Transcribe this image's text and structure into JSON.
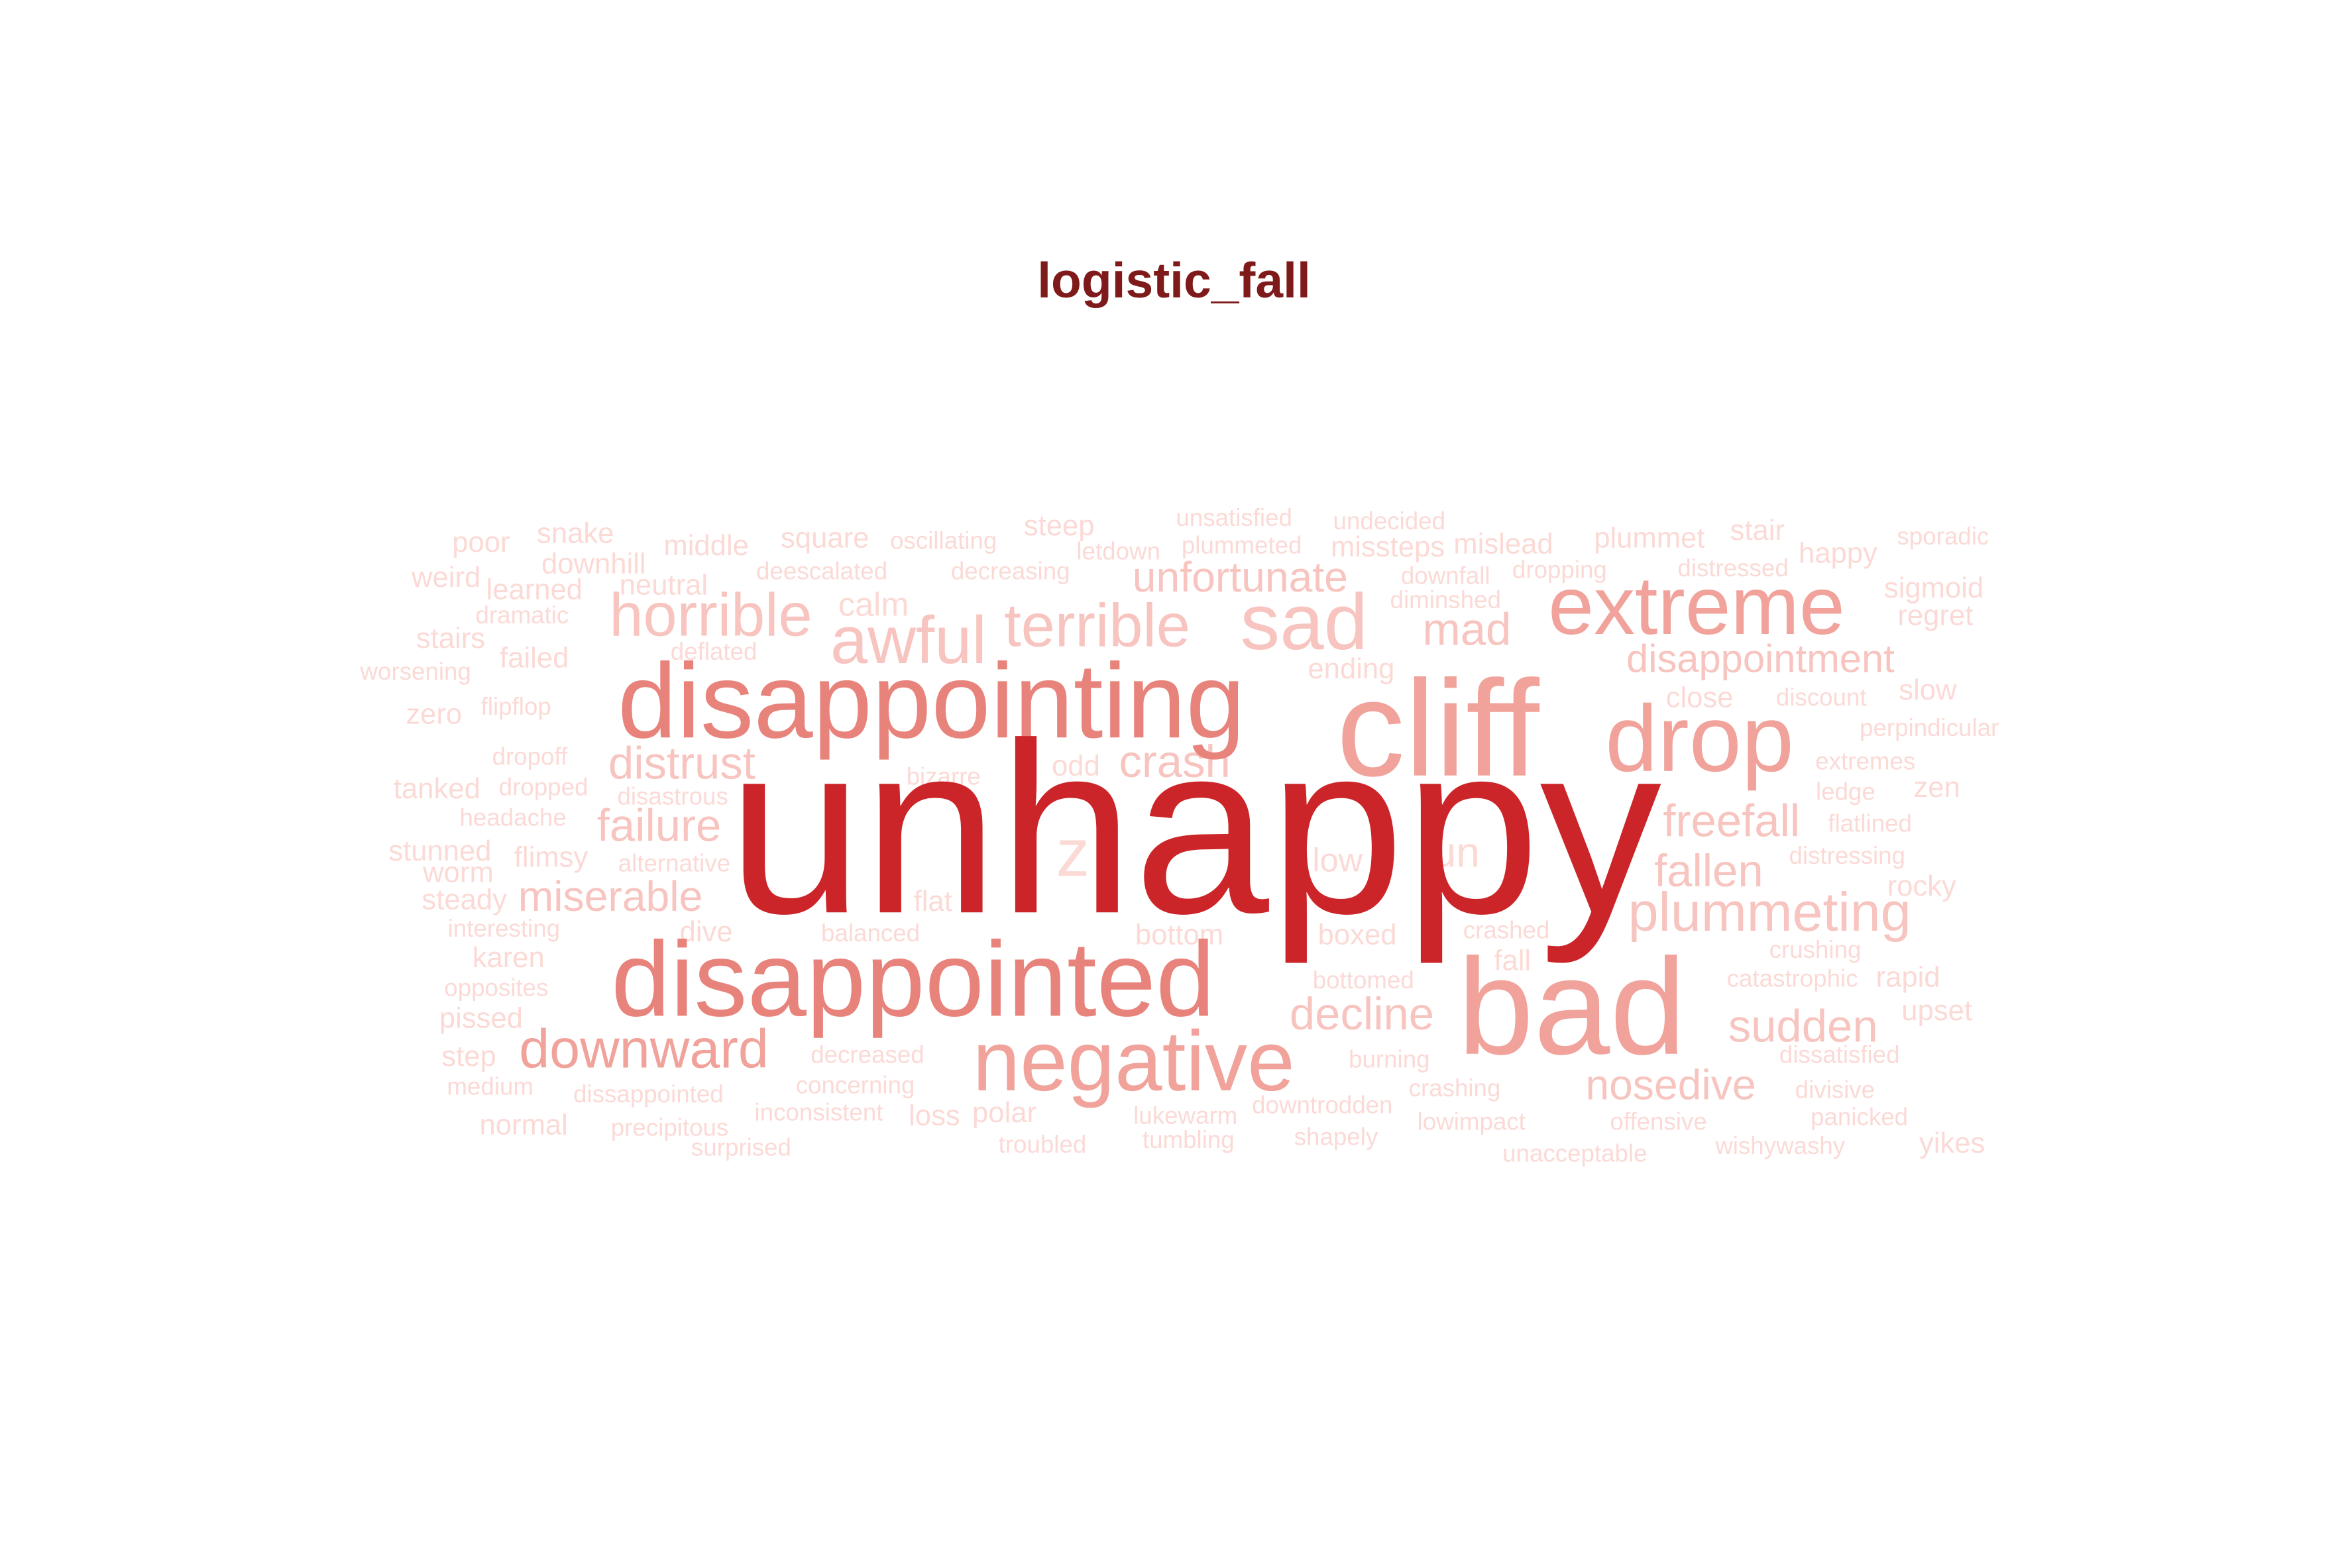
{
  "chart_data": {
    "type": "wordcloud",
    "title": "logistic_fall",
    "colors": {
      "title": "#7f1a1a",
      "tier1": "#cc2529",
      "tier2": "#e8837c",
      "tier3": "#f0a29b",
      "tier4": "#f7c4bf",
      "tier5": "#fbdad6"
    },
    "words": [
      {
        "text": "unhappy",
        "weight": 100,
        "tier": 1
      },
      {
        "text": "cliff",
        "weight": 60,
        "tier": 3
      },
      {
        "text": "disappointing",
        "weight": 52,
        "tier": 2
      },
      {
        "text": "disappointed",
        "weight": 52,
        "tier": 2
      },
      {
        "text": "bad",
        "weight": 58,
        "tier": 3
      },
      {
        "text": "negative",
        "weight": 44,
        "tier": 3
      },
      {
        "text": "drop",
        "weight": 44,
        "tier": 3
      },
      {
        "text": "extreme",
        "weight": 42,
        "tier": 3
      },
      {
        "text": "sad",
        "weight": 42,
        "tier": 4
      },
      {
        "text": "horrible",
        "weight": 32,
        "tier": 4
      },
      {
        "text": "awful",
        "weight": 34,
        "tier": 4
      },
      {
        "text": "terrible",
        "weight": 32,
        "tier": 4
      },
      {
        "text": "downward",
        "weight": 30,
        "tier": 3
      },
      {
        "text": "plummeting",
        "weight": 30,
        "tier": 4
      },
      {
        "text": "z",
        "weight": 34,
        "tier": 5
      },
      {
        "text": "mad",
        "weight": 26,
        "tier": 4
      },
      {
        "text": "freefall",
        "weight": 26,
        "tier": 4
      },
      {
        "text": "fallen",
        "weight": 26,
        "tier": 4
      },
      {
        "text": "decline",
        "weight": 26,
        "tier": 4
      },
      {
        "text": "sudden",
        "weight": 26,
        "tier": 4
      },
      {
        "text": "nosedive",
        "weight": 24,
        "tier": 4
      },
      {
        "text": "miserable",
        "weight": 24,
        "tier": 4
      },
      {
        "text": "failure",
        "weight": 24,
        "tier": 4
      },
      {
        "text": "distrust",
        "weight": 24,
        "tier": 4
      },
      {
        "text": "unfortunate",
        "weight": 22,
        "tier": 4
      },
      {
        "text": "disappointment",
        "weight": 22,
        "tier": 4
      },
      {
        "text": "crash",
        "weight": 22,
        "tier": 4
      },
      {
        "text": "un",
        "weight": 22,
        "tier": 5
      },
      {
        "text": "low",
        "weight": 18,
        "tier": 5
      },
      {
        "text": "calm",
        "weight": 18,
        "tier": 5
      },
      {
        "text": "poor",
        "weight": 16,
        "tier": 5
      },
      {
        "text": "snake",
        "weight": 16,
        "tier": 5
      },
      {
        "text": "middle",
        "weight": 16,
        "tier": 5
      },
      {
        "text": "square",
        "weight": 16,
        "tier": 5
      },
      {
        "text": "oscillating",
        "weight": 14,
        "tier": 5
      },
      {
        "text": "steep",
        "weight": 16,
        "tier": 5
      },
      {
        "text": "unsatisfied",
        "weight": 14,
        "tier": 5
      },
      {
        "text": "undecided",
        "weight": 14,
        "tier": 5
      },
      {
        "text": "plummet",
        "weight": 16,
        "tier": 5
      },
      {
        "text": "stair",
        "weight": 16,
        "tier": 5
      },
      {
        "text": "sporadic",
        "weight": 14,
        "tier": 5
      },
      {
        "text": "weird",
        "weight": 16,
        "tier": 5
      },
      {
        "text": "downhill",
        "weight": 16,
        "tier": 5
      },
      {
        "text": "learned",
        "weight": 16,
        "tier": 5
      },
      {
        "text": "neutral",
        "weight": 16,
        "tier": 5
      },
      {
        "text": "deescalated",
        "weight": 14,
        "tier": 5
      },
      {
        "text": "decreasing",
        "weight": 14,
        "tier": 5
      },
      {
        "text": "letdown",
        "weight": 14,
        "tier": 5
      },
      {
        "text": "plummeted",
        "weight": 14,
        "tier": 5
      },
      {
        "text": "missteps",
        "weight": 16,
        "tier": 5
      },
      {
        "text": "mislead",
        "weight": 16,
        "tier": 5
      },
      {
        "text": "dropping",
        "weight": 14,
        "tier": 5
      },
      {
        "text": "distressed",
        "weight": 14,
        "tier": 5
      },
      {
        "text": "happy",
        "weight": 16,
        "tier": 5
      },
      {
        "text": "sigmoid",
        "weight": 16,
        "tier": 5
      },
      {
        "text": "dramatic",
        "weight": 14,
        "tier": 5
      },
      {
        "text": "downfall",
        "weight": 14,
        "tier": 5
      },
      {
        "text": "diminshed",
        "weight": 14,
        "tier": 5
      },
      {
        "text": "regret",
        "weight": 16,
        "tier": 5
      },
      {
        "text": "stairs",
        "weight": 16,
        "tier": 5
      },
      {
        "text": "deflated",
        "weight": 14,
        "tier": 5
      },
      {
        "text": "failed",
        "weight": 16,
        "tier": 5
      },
      {
        "text": "ending",
        "weight": 16,
        "tier": 5
      },
      {
        "text": "worsening",
        "weight": 14,
        "tier": 5
      },
      {
        "text": "close",
        "weight": 16,
        "tier": 5
      },
      {
        "text": "discount",
        "weight": 14,
        "tier": 5
      },
      {
        "text": "slow",
        "weight": 16,
        "tier": 5
      },
      {
        "text": "zero",
        "weight": 16,
        "tier": 5
      },
      {
        "text": "flipflop",
        "weight": 14,
        "tier": 5
      },
      {
        "text": "perpindicular",
        "weight": 14,
        "tier": 5
      },
      {
        "text": "dropoff",
        "weight": 14,
        "tier": 5
      },
      {
        "text": "odd",
        "weight": 16,
        "tier": 5
      },
      {
        "text": "extremes",
        "weight": 14,
        "tier": 5
      },
      {
        "text": "bizarre",
        "weight": 14,
        "tier": 5
      },
      {
        "text": "ledge",
        "weight": 14,
        "tier": 5
      },
      {
        "text": "zen",
        "weight": 16,
        "tier": 5
      },
      {
        "text": "tanked",
        "weight": 16,
        "tier": 5
      },
      {
        "text": "dropped",
        "weight": 14,
        "tier": 5
      },
      {
        "text": "disastrous",
        "weight": 14,
        "tier": 5
      },
      {
        "text": "headache",
        "weight": 14,
        "tier": 5
      },
      {
        "text": "flatlined",
        "weight": 14,
        "tier": 5
      },
      {
        "text": "stunned",
        "weight": 16,
        "tier": 5
      },
      {
        "text": "worm",
        "weight": 16,
        "tier": 5
      },
      {
        "text": "flimsy",
        "weight": 16,
        "tier": 5
      },
      {
        "text": "alternative",
        "weight": 14,
        "tier": 5
      },
      {
        "text": "distressing",
        "weight": 14,
        "tier": 5
      },
      {
        "text": "steady",
        "weight": 16,
        "tier": 5
      },
      {
        "text": "flat",
        "weight": 18,
        "tier": 5
      },
      {
        "text": "rocky",
        "weight": 16,
        "tier": 5
      },
      {
        "text": "interesting",
        "weight": 14,
        "tier": 5
      },
      {
        "text": "dive",
        "weight": 16,
        "tier": 5
      },
      {
        "text": "balanced",
        "weight": 14,
        "tier": 5
      },
      {
        "text": "bottom",
        "weight": 16,
        "tier": 5
      },
      {
        "text": "boxed",
        "weight": 16,
        "tier": 5
      },
      {
        "text": "crashed",
        "weight": 14,
        "tier": 5
      },
      {
        "text": "crushing",
        "weight": 14,
        "tier": 5
      },
      {
        "text": "karen",
        "weight": 16,
        "tier": 5
      },
      {
        "text": "fall",
        "weight": 18,
        "tier": 5
      },
      {
        "text": "opposites",
        "weight": 14,
        "tier": 5
      },
      {
        "text": "bottomed",
        "weight": 14,
        "tier": 5
      },
      {
        "text": "catastrophic",
        "weight": 14,
        "tier": 5
      },
      {
        "text": "rapid",
        "weight": 16,
        "tier": 5
      },
      {
        "text": "pissed",
        "weight": 16,
        "tier": 5
      },
      {
        "text": "upset",
        "weight": 16,
        "tier": 5
      },
      {
        "text": "step",
        "weight": 16,
        "tier": 5
      },
      {
        "text": "decreased",
        "weight": 14,
        "tier": 5
      },
      {
        "text": "burning",
        "weight": 14,
        "tier": 5
      },
      {
        "text": "dissatisfied",
        "weight": 14,
        "tier": 5
      },
      {
        "text": "medium",
        "weight": 14,
        "tier": 5
      },
      {
        "text": "concerning",
        "weight": 14,
        "tier": 5
      },
      {
        "text": "crashing",
        "weight": 14,
        "tier": 5
      },
      {
        "text": "divisive",
        "weight": 14,
        "tier": 5
      },
      {
        "text": "dissappointed",
        "weight": 14,
        "tier": 5
      },
      {
        "text": "downtrodden",
        "weight": 14,
        "tier": 5
      },
      {
        "text": "inconsistent",
        "weight": 14,
        "tier": 5
      },
      {
        "text": "loss",
        "weight": 18,
        "tier": 5
      },
      {
        "text": "polar",
        "weight": 18,
        "tier": 5
      },
      {
        "text": "lukewarm",
        "weight": 14,
        "tier": 5
      },
      {
        "text": "offensive",
        "weight": 14,
        "tier": 5
      },
      {
        "text": "panicked",
        "weight": 14,
        "tier": 5
      },
      {
        "text": "normal",
        "weight": 16,
        "tier": 5
      },
      {
        "text": "precipitous",
        "weight": 14,
        "tier": 5
      },
      {
        "text": "tumbling",
        "weight": 14,
        "tier": 5
      },
      {
        "text": "lowimpact",
        "weight": 14,
        "tier": 5
      },
      {
        "text": "shapely",
        "weight": 14,
        "tier": 5
      },
      {
        "text": "troubled",
        "weight": 14,
        "tier": 5
      },
      {
        "text": "surprised",
        "weight": 14,
        "tier": 5
      },
      {
        "text": "wishywashy",
        "weight": 13,
        "tier": 5
      },
      {
        "text": "unacceptable",
        "weight": 13,
        "tier": 5
      },
      {
        "text": "yikes",
        "weight": 16,
        "tier": 5
      }
    ]
  }
}
